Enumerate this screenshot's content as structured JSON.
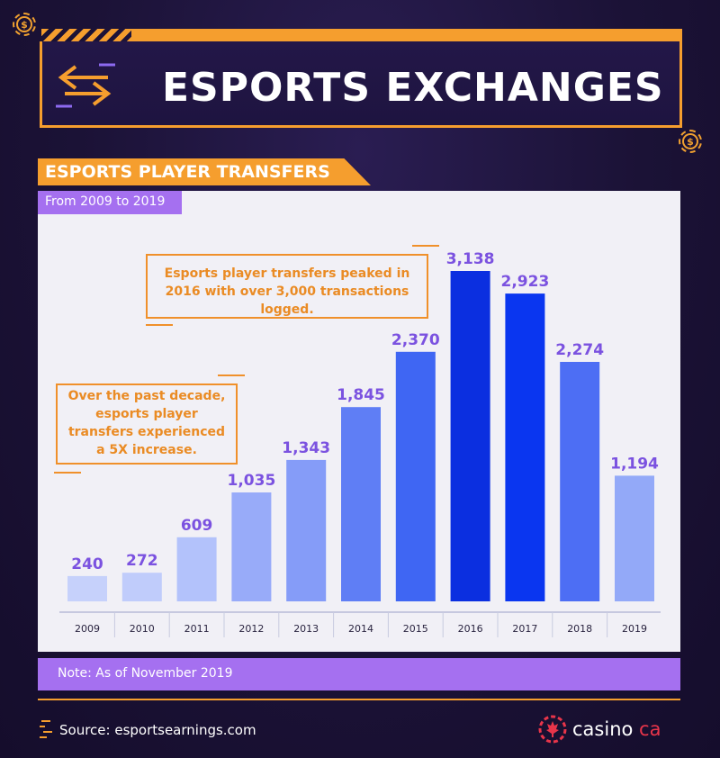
{
  "header": {
    "title": "ESPORTS EXCHANGES",
    "icon": "exchange-arrows-icon"
  },
  "section": {
    "title": "ESPORTS PLAYER TRANSFERS",
    "subtitle": "From 2009 to 2019"
  },
  "annotations": {
    "peak": "Esports player transfers peaked in 2016 with over 3,000 transactions logged.",
    "decade": "Over the past decade, esports player transfers experienced a 5X increase."
  },
  "note": "Note: As of November 2019",
  "source": "Source: esportsearnings.com",
  "logo": {
    "name": "casino",
    "suffix": "ca"
  },
  "colors": {
    "accent_orange": "#f59e2e",
    "accent_purple": "#a570f0",
    "value_label": "#7b52e0",
    "background": "#1a1133"
  },
  "chart_data": {
    "type": "bar",
    "title": "ESPORTS PLAYER TRANSFERS",
    "subtitle": "From 2009 to 2019",
    "categories": [
      "2009",
      "2010",
      "2011",
      "2012",
      "2013",
      "2014",
      "2015",
      "2016",
      "2017",
      "2018",
      "2019"
    ],
    "values": [
      240,
      272,
      609,
      1035,
      1343,
      1845,
      2370,
      3138,
      2923,
      2274,
      1194
    ],
    "value_labels": [
      "240",
      "272",
      "609",
      "1,035",
      "1,343",
      "1,845",
      "2,370",
      "3,138",
      "2,923",
      "2,274",
      "1,194"
    ],
    "bar_colors": [
      "#c6d1fb",
      "#c0ccfb",
      "#b3c2fb",
      "#98abf9",
      "#859cf8",
      "#5f7ef5",
      "#3f66f3",
      "#0b2fe0",
      "#0a36f0",
      "#4d6ef4",
      "#93a9f8"
    ],
    "ylim": [
      0,
      3138
    ],
    "xlabel": "",
    "ylabel": "",
    "grid": false,
    "legend": "none"
  }
}
